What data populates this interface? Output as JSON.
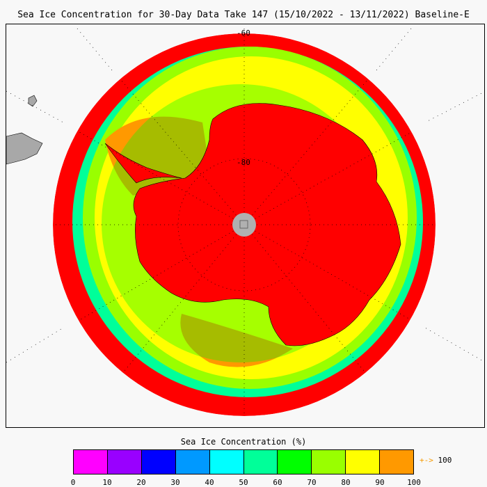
{
  "title": "Sea Ice Concentration for 30-Day Data Take 147 (15/10/2022 - 13/11/2022) Baseline-E",
  "map": {
    "projection": "south-polar-stereographic",
    "latitude_labels": [
      "-60",
      "-80"
    ],
    "pole_fill": "#b0b0b0",
    "land_color": "#a8a8a8"
  },
  "colorbar": {
    "title": "Sea Ice Concentration (%)",
    "ticks": [
      "0",
      "10",
      "20",
      "30",
      "40",
      "50",
      "60",
      "70",
      "80",
      "90",
      "100"
    ],
    "colors": [
      "#ff00ff",
      "#9900ff",
      "#0000ff",
      "#0099ff",
      "#00ffff",
      "#00ff99",
      "#00ff00",
      "#99ff00",
      "#ffff00",
      "#ff9900"
    ],
    "over_arrow": "+->",
    "over_label": "100",
    "over_color": "#ff0000"
  }
}
